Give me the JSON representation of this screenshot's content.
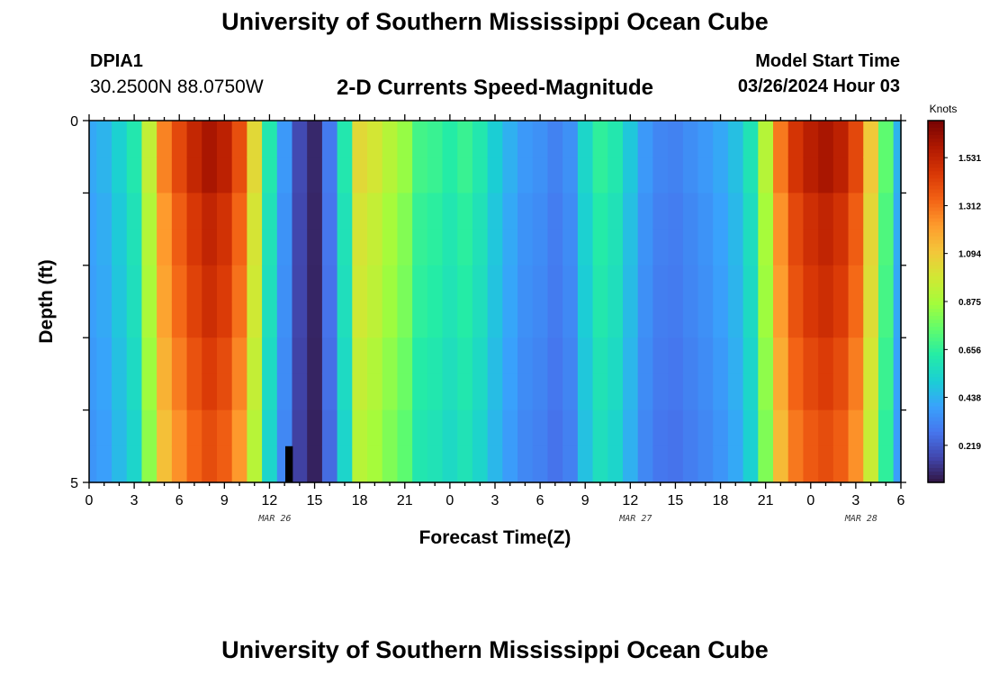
{
  "header": {
    "title": "University of Southern Mississippi Ocean Cube",
    "station_id": "DPIA1",
    "station_coords": "30.2500N  88.0750W",
    "chart_title": "2-D Currents Speed-Magnitude",
    "model_start_label": "Model Start Time",
    "model_start_value": "03/26/2024 Hour 03"
  },
  "footer": {
    "title": "University of Southern Mississippi Ocean Cube"
  },
  "colors": {
    "colormap": [
      "#30123b",
      "#4145ab",
      "#4675ed",
      "#39a2fc",
      "#1bcfd4",
      "#24eca6",
      "#61fc6c",
      "#a4fc3b",
      "#d1e834",
      "#f3c63a",
      "#fe9b2d",
      "#f36315",
      "#d93806",
      "#b11901",
      "#7a0403"
    ]
  },
  "chart_data": {
    "type": "heatmap",
    "title": "2-D Currents Speed-Magnitude",
    "xlabel": "Forecast Time(Z)",
    "ylabel": "Depth (ft)",
    "colorbar_label": "Knots",
    "colorbar_ticks": [
      "1.531",
      "1.312",
      "1.094",
      "0.875",
      "0.656",
      "0.438",
      "0.219"
    ],
    "colorbar_tick_values": [
      1.531,
      1.312,
      1.094,
      0.875,
      0.656,
      0.438,
      0.219
    ],
    "value_range": [
      0.05,
      1.7
    ],
    "x_hours": [
      0,
      1,
      2,
      3,
      4,
      5,
      6,
      7,
      8,
      9,
      10,
      11,
      12,
      13,
      14,
      15,
      16,
      17,
      18,
      19,
      20,
      21,
      22,
      23,
      24,
      25,
      26,
      27,
      28,
      29,
      30,
      31,
      32,
      33,
      34,
      35,
      36,
      37,
      38,
      39,
      40,
      41,
      42,
      43,
      44,
      45,
      46,
      47,
      48,
      49,
      50,
      51,
      52,
      53,
      54
    ],
    "x_tick_labels": [
      "0",
      "3",
      "6",
      "9",
      "12",
      "15",
      "18",
      "21",
      "0",
      "3",
      "6",
      "9",
      "12",
      "15",
      "18",
      "21",
      "0",
      "3",
      "6"
    ],
    "x_tick_hours": [
      0,
      3,
      6,
      9,
      12,
      15,
      18,
      21,
      24,
      27,
      30,
      33,
      36,
      39,
      42,
      45,
      48,
      51,
      54
    ],
    "date_labels": [
      {
        "text": "MAR 26",
        "hour": 12
      },
      {
        "text": "MAR 27",
        "hour": 36
      },
      {
        "text": "MAR 28",
        "hour": 51
      }
    ],
    "y_tick_labels": [
      "0",
      "5"
    ],
    "ylim": [
      0,
      5
    ],
    "depth_bins": [
      0.25,
      0.75,
      1.25,
      1.75,
      2.25,
      2.75,
      3.25,
      3.75,
      4.25,
      4.75
    ],
    "surface_speeds": [
      0.42,
      0.45,
      0.53,
      0.62,
      0.95,
      1.28,
      1.42,
      1.53,
      1.6,
      1.55,
      1.4,
      1.05,
      0.62,
      0.38,
      0.18,
      0.1,
      0.3,
      0.62,
      1.05,
      1.0,
      0.92,
      0.85,
      0.7,
      0.68,
      0.64,
      0.68,
      0.62,
      0.52,
      0.44,
      0.38,
      0.36,
      0.32,
      0.36,
      0.55,
      0.66,
      0.62,
      0.5,
      0.38,
      0.33,
      0.32,
      0.35,
      0.38,
      0.42,
      0.48,
      0.6,
      0.92,
      1.3,
      1.48,
      1.56,
      1.6,
      1.55,
      1.42,
      1.1,
      0.75,
      0.45
    ],
    "depth_factors": [
      1.0,
      1.0,
      0.96,
      0.96,
      0.94,
      0.94,
      0.91,
      0.91,
      0.88,
      0.88
    ],
    "masked_cells": [
      {
        "hour": 13.3,
        "depth_from": 4.5,
        "depth_to": 5.0
      }
    ]
  }
}
